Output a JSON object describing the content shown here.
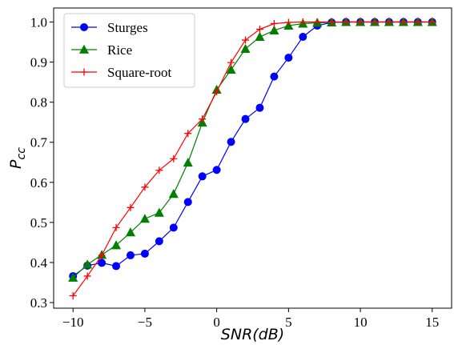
{
  "chart_data": {
    "type": "line",
    "xlabel": "SNR(dB)",
    "ylabel_main": "P",
    "ylabel_sub": "cc",
    "xlim": [
      -11.35,
      16.35
    ],
    "ylim": [
      0.286,
      1.035
    ],
    "xticks": [
      -10,
      -5,
      0,
      5,
      10,
      15
    ],
    "xtick_labels": [
      "−10",
      "−5",
      "0",
      "5",
      "10",
      "15"
    ],
    "yticks": [
      0.3,
      0.4,
      0.5,
      0.6,
      0.7,
      0.8,
      0.9,
      1.0
    ],
    "ytick_labels": [
      "0.3",
      "0.4",
      "0.5",
      "0.6",
      "0.7",
      "0.8",
      "0.9",
      "1.0"
    ],
    "grid": false,
    "legend_position": "top-left",
    "x": [
      -10,
      -9,
      -8,
      -7,
      -6,
      -5,
      -4,
      -3,
      -2,
      -1,
      0,
      1,
      2,
      3,
      4,
      5,
      6,
      7,
      8,
      9,
      10,
      11,
      12,
      13,
      14,
      15
    ],
    "series": [
      {
        "name": "Sturges",
        "color": "#0000ff",
        "marker": "circle",
        "values": [
          0.366,
          0.392,
          0.399,
          0.391,
          0.418,
          0.422,
          0.453,
          0.487,
          0.551,
          0.615,
          0.631,
          0.701,
          0.758,
          0.786,
          0.864,
          0.911,
          0.963,
          0.991,
          0.999,
          1.0,
          1.0,
          1.0,
          1.0,
          1.0,
          1.0,
          1.0
        ]
      },
      {
        "name": "Rice",
        "color": "#008000",
        "marker": "triangle",
        "values": [
          0.362,
          0.395,
          0.419,
          0.443,
          0.475,
          0.509,
          0.524,
          0.571,
          0.649,
          0.749,
          0.831,
          0.881,
          0.933,
          0.963,
          0.979,
          0.991,
          0.996,
          0.998,
          0.999,
          1.0,
          1.0,
          1.0,
          1.0,
          1.0,
          1.0,
          1.0
        ]
      },
      {
        "name": "Square-root",
        "color": "#ff0000",
        "marker": "plus",
        "values": [
          0.317,
          0.366,
          0.418,
          0.487,
          0.537,
          0.588,
          0.63,
          0.659,
          0.722,
          0.758,
          0.826,
          0.899,
          0.955,
          0.982,
          0.996,
          0.999,
          1.0,
          1.0,
          1.0,
          1.0,
          1.0,
          1.0,
          1.0,
          1.0,
          1.0,
          1.0
        ]
      }
    ]
  }
}
